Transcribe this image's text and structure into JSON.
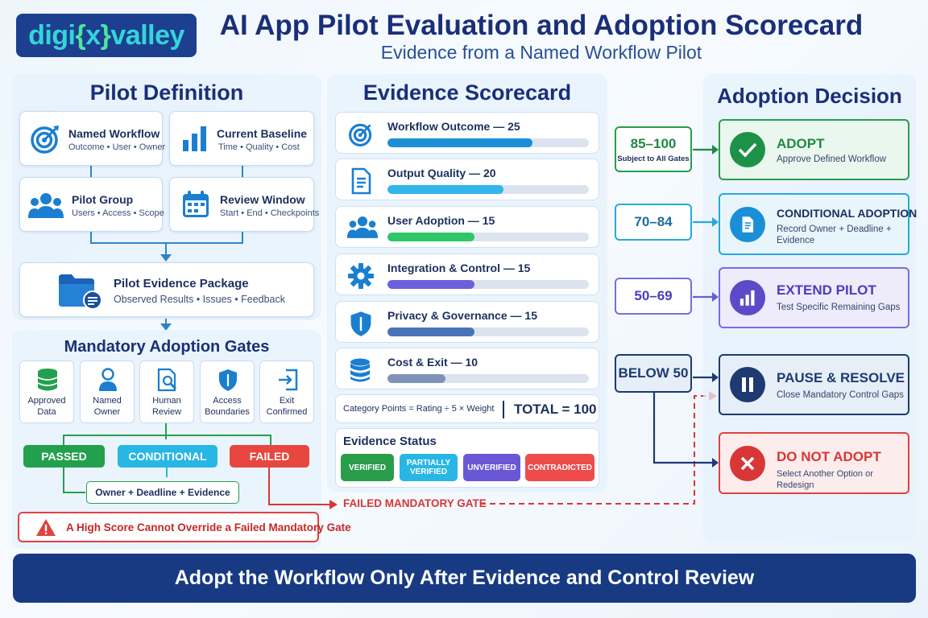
{
  "header": {
    "logo": {
      "part1": "digi",
      "brace_open": "{",
      "x": "x",
      "brace_close": "}",
      "part2": "valley"
    },
    "title": "AI App Pilot Evaluation and Adoption Scorecard",
    "subtitle": "Evidence from a Named Workflow Pilot"
  },
  "pilot_definition": {
    "title": "Pilot Definition",
    "cards": [
      {
        "title": "Named Workflow",
        "sub": "Outcome • User • Owner",
        "icon": "target-icon"
      },
      {
        "title": "Current Baseline",
        "sub": "Time • Quality • Cost",
        "icon": "bar-chart-icon"
      },
      {
        "title": "Pilot Group",
        "sub": "Users • Access • Scope",
        "icon": "users-icon"
      },
      {
        "title": "Review Window",
        "sub": "Start • End • Checkpoints",
        "icon": "calendar-icon"
      }
    ],
    "package": {
      "title": "Pilot Evidence Package",
      "sub": "Observed Results • Issues • Feedback",
      "icon": "folder-icon"
    }
  },
  "gates": {
    "title": "Mandatory Adoption Gates",
    "items": [
      {
        "line1": "Approved",
        "line2": "Data",
        "icon": "database-icon"
      },
      {
        "line1": "Named",
        "line2": "Owner",
        "icon": "person-icon"
      },
      {
        "line1": "Human",
        "line2": "Review",
        "icon": "document-search-icon"
      },
      {
        "line1": "Access",
        "line2": "Boundaries",
        "icon": "shield-icon"
      },
      {
        "line1": "Exit",
        "line2": "Confirmed",
        "icon": "exit-icon"
      }
    ],
    "outcomes": {
      "passed": "PASSED",
      "conditional": "CONDITIONAL",
      "failed": "FAILED"
    },
    "conditional_note": "Owner + Deadline + Evidence",
    "warning": "A High Score Cannot Override a Failed Mandatory Gate",
    "failed_link": "FAILED MANDATORY GATE"
  },
  "scorecard": {
    "title": "Evidence Scorecard",
    "items": [
      {
        "label": "Workflow Outcome — 25",
        "weight": 25,
        "color": "#1a8fd8",
        "icon": "target-icon"
      },
      {
        "label": "Output Quality — 20",
        "weight": 20,
        "color": "#32b6ec",
        "icon": "document-icon"
      },
      {
        "label": "User Adoption — 15",
        "weight": 15,
        "color": "#2ec768",
        "icon": "users-icon"
      },
      {
        "label": "Integration & Control — 15",
        "weight": 15,
        "color": "#6d60dd",
        "icon": "gear-icon"
      },
      {
        "label": "Privacy & Governance — 15",
        "weight": 15,
        "color": "#4a72b8",
        "icon": "shield-icon"
      },
      {
        "label": "Cost & Exit — 10",
        "weight": 10,
        "color": "#7f93b8",
        "icon": "coins-icon"
      }
    ],
    "formula": "Category Points = Rating ÷ 5 × Weight",
    "total": "TOTAL = 100",
    "evidence_status": {
      "title": "Evidence Status",
      "items": [
        {
          "label": "VERIFIED",
          "color": "#2a9d4b"
        },
        {
          "label": "PARTIALLY VERIFIED",
          "color": "#28b6e4"
        },
        {
          "label": "UNVERIFIED",
          "color": "#6a57d6"
        },
        {
          "label": "CONTRADICTED",
          "color": "#ee4b4b"
        }
      ]
    }
  },
  "adoption": {
    "title": "Adoption Decision",
    "ranges": [
      {
        "range": "85–100",
        "note": "Subject to All Gates",
        "color": "#1e9148"
      },
      {
        "range": "70–84",
        "note": "",
        "color": "#1a82b8"
      },
      {
        "range": "50–69",
        "note": "",
        "color": "#5b4bc8"
      },
      {
        "range": "BELOW 50",
        "note": "",
        "color": "#1e3a72"
      }
    ],
    "decisions": [
      {
        "title": "ADOPT",
        "sub": "Approve Defined Workflow",
        "color": "#1e9148",
        "icon": "check-icon"
      },
      {
        "title": "CONDITIONAL ADOPTION",
        "sub": "Record Owner + Deadline + Evidence",
        "color": "#1a82b8",
        "icon": "document-icon"
      },
      {
        "title": "EXTEND PILOT",
        "sub": "Test Specific Remaining Gaps",
        "color": "#5b4bc8",
        "icon": "bar-chart-icon"
      },
      {
        "title": "PAUSE & RESOLVE",
        "sub": "Close Mandatory Control Gaps",
        "color": "#1e3a72",
        "icon": "pause-icon"
      },
      {
        "title": "DO NOT ADOPT",
        "sub": "Select Another Option or Redesign",
        "color": "#d93636",
        "icon": "x-icon"
      }
    ]
  },
  "footer": "Adopt the Workflow Only After Evidence and Control Review"
}
